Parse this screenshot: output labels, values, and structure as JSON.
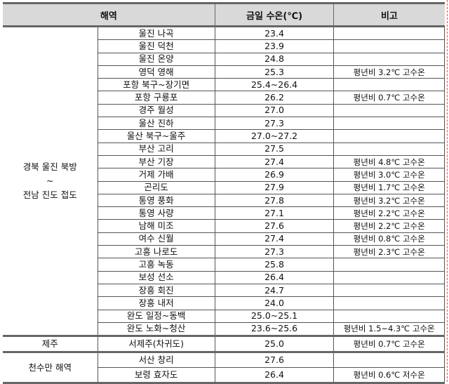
{
  "header": {
    "region": "해역",
    "temp": "금일 수온(℃)",
    "note": "비고"
  },
  "groups": [
    {
      "region_lines": [
        "경북 울진 북방",
        "~",
        "전남 진도 접도"
      ],
      "rows": [
        {
          "site": "울진 나곡",
          "temp": "23.4",
          "note": ""
        },
        {
          "site": "울진 덕천",
          "temp": "23.9",
          "note": ""
        },
        {
          "site": "울진 온양",
          "temp": "24.8",
          "note": ""
        },
        {
          "site": "영덕 영해",
          "temp": "25.3",
          "note": "평년비 3.2℃ 고수온"
        },
        {
          "site": "포항 북구~장기면",
          "temp": "25.4~26.4",
          "note": ""
        },
        {
          "site": "포항 구룡포",
          "temp": "26.2",
          "note": "평년비 0.7℃ 고수온"
        },
        {
          "site": "경주 월성",
          "temp": "27.0",
          "note": ""
        },
        {
          "site": "울산 진하",
          "temp": "27.3",
          "note": ""
        },
        {
          "site": "울산 북구~울주",
          "temp": "27.0~27.2",
          "note": ""
        },
        {
          "site": "부산 고리",
          "temp": "27.5",
          "note": ""
        },
        {
          "site": "부산 기장",
          "temp": "27.4",
          "note": "평년비 4.8℃ 고수온"
        },
        {
          "site": "거제 가배",
          "temp": "26.9",
          "note": "평년비 3.0℃ 고수온"
        },
        {
          "site": "곤리도",
          "temp": "27.9",
          "note": "평년비 1.7℃ 고수온"
        },
        {
          "site": "통영 풍화",
          "temp": "27.8",
          "note": "평년비 3.2℃ 고수온"
        },
        {
          "site": "통영 사량",
          "temp": "27.1",
          "note": "평년비 2.2℃ 고수온"
        },
        {
          "site": "남해 미조",
          "temp": "27.6",
          "note": "평년비 2.2℃ 고수온"
        },
        {
          "site": "여수 신월",
          "temp": "27.4",
          "note": "평년비 0.8℃ 고수온"
        },
        {
          "site": "고흥 나로도",
          "temp": "27.3",
          "note": "평년비 2.3℃ 고수온"
        },
        {
          "site": "고흥 녹동",
          "temp": "25.8",
          "note": ""
        },
        {
          "site": "보성 선소",
          "temp": "26.4",
          "note": ""
        },
        {
          "site": "장흥 회진",
          "temp": "24.7",
          "note": ""
        },
        {
          "site": "장흥 내저",
          "temp": "24.0",
          "note": ""
        },
        {
          "site": "완도 일정~동백",
          "temp": "25.0~25.1",
          "note": ""
        },
        {
          "site": "완도 노화~청산",
          "temp": "23.6~25.6",
          "note": "평년비 1.5~4.3℃ 고수온"
        }
      ]
    },
    {
      "region_lines": [
        "제주"
      ],
      "rows": [
        {
          "site": "서제주(차귀도)",
          "temp": "25.0",
          "note": "평년비 0.7℃ 고수온"
        }
      ]
    },
    {
      "region_lines": [
        "천수만 해역"
      ],
      "rows": [
        {
          "site": "서산 창리",
          "temp": "27.6",
          "note": ""
        },
        {
          "site": "보령 효자도",
          "temp": "26.4",
          "note": "평년비 0.6℃ 저수온"
        }
      ]
    }
  ]
}
